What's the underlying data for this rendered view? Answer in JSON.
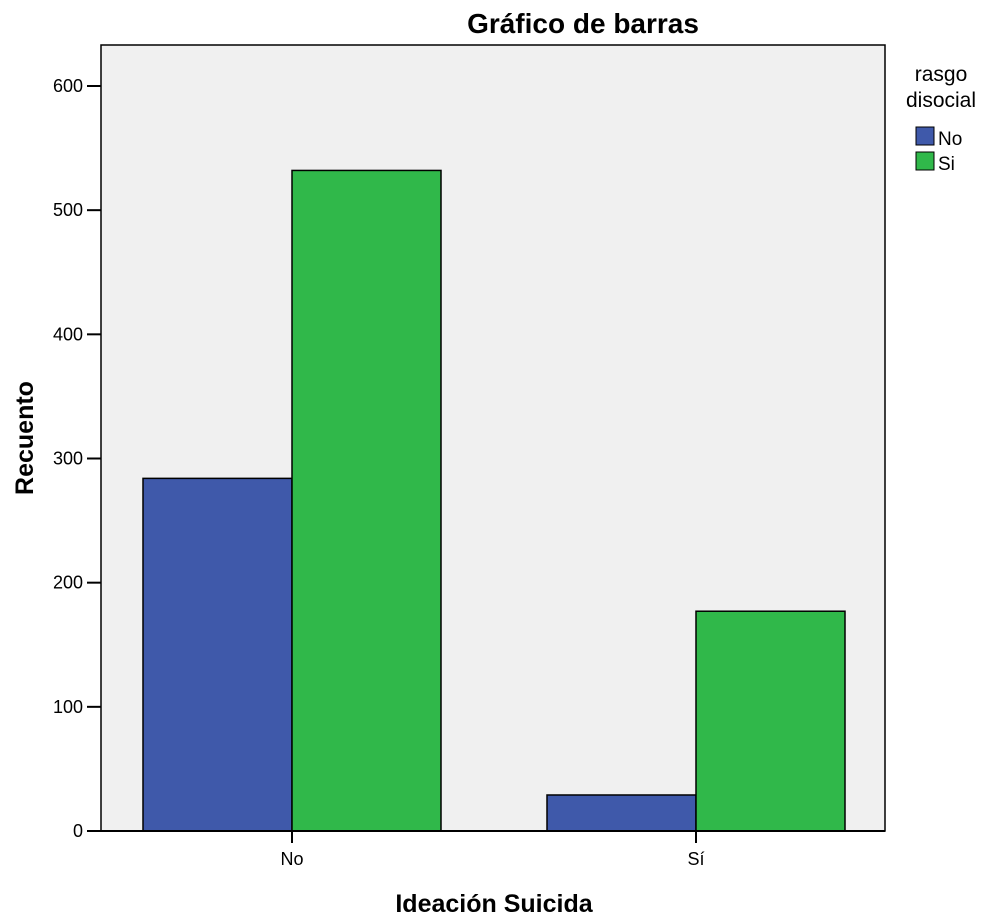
{
  "chart_data": {
    "type": "bar",
    "title": "Gráfico de barras",
    "xlabel": "Ideación Suicida",
    "ylabel": "Recuento",
    "categories": [
      "No",
      "Sí"
    ],
    "series": [
      {
        "name": "No",
        "values": [
          284,
          29
        ],
        "color": "#3f59aa"
      },
      {
        "name": "Si",
        "values": [
          532,
          177
        ],
        "color": "#30b84a"
      }
    ],
    "ylim": [
      0,
      600
    ],
    "yticks": [
      0,
      100,
      200,
      300,
      400,
      500,
      600
    ],
    "legend": {
      "title_lines": [
        "rasgo",
        "disocial"
      ],
      "placement": "right"
    },
    "grid": false,
    "plot_background": "#f0f0f0"
  }
}
